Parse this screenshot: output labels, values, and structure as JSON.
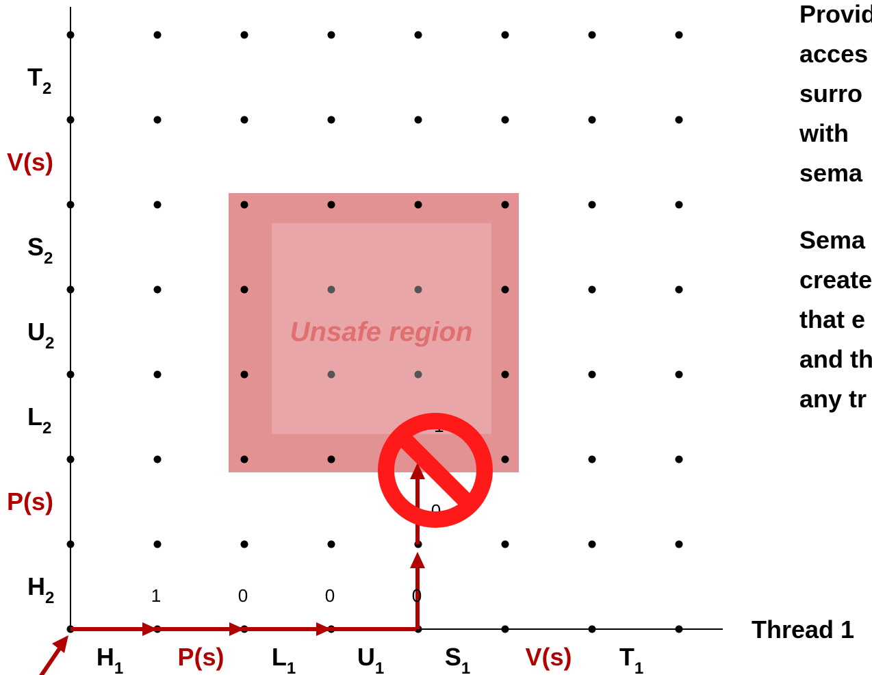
{
  "x_axis": {
    "labels": [
      {
        "main": "H",
        "sub": "1",
        "color": "#000000"
      },
      {
        "main": "P(s)",
        "sub": "",
        "color": "#b00000"
      },
      {
        "main": "L",
        "sub": "1",
        "color": "#000000"
      },
      {
        "main": "U",
        "sub": "1",
        "color": "#000000"
      },
      {
        "main": "S",
        "sub": "1",
        "color": "#000000"
      },
      {
        "main": "V(s)",
        "sub": "",
        "color": "#b00000"
      },
      {
        "main": "T",
        "sub": "1",
        "color": "#000000"
      }
    ],
    "axis_label": "Thread 1"
  },
  "y_axis": {
    "labels": [
      {
        "main": "H",
        "sub": "2",
        "color": "#000000"
      },
      {
        "main": "P(s)",
        "sub": "",
        "color": "#b00000"
      },
      {
        "main": "L",
        "sub": "2",
        "color": "#000000"
      },
      {
        "main": "U",
        "sub": "2",
        "color": "#000000"
      },
      {
        "main": "S",
        "sub": "2",
        "color": "#000000"
      },
      {
        "main": "V(s)",
        "sub": "",
        "color": "#b00000"
      },
      {
        "main": "T",
        "sub": "2",
        "color": "#000000"
      }
    ]
  },
  "cell_values": [
    {
      "text": "1",
      "col": 1,
      "row": 0
    },
    {
      "text": "0",
      "col": 2,
      "row": 0
    },
    {
      "text": "0",
      "col": 3,
      "row": 0
    },
    {
      "text": "0",
      "col": 4,
      "row": 0
    },
    {
      "text": "0",
      "col": 4,
      "row": 1
    },
    {
      "text": "-1",
      "col": 4,
      "row": 2
    }
  ],
  "unsafe_region": {
    "label": "Unsafe region"
  },
  "side_text": {
    "para1": [
      "Provid",
      "acces",
      "surro",
      "with",
      "sema"
    ],
    "para2": [
      "Sema",
      "create",
      "that e",
      "and th",
      "any tr"
    ]
  },
  "colors": {
    "accent_red": "#b00000",
    "forbidden_fill": "#e39294",
    "unsafe_fill": "#e8a6a8",
    "unsafe_text": "#e0706f",
    "no_symbol": "#ff1a1a"
  }
}
